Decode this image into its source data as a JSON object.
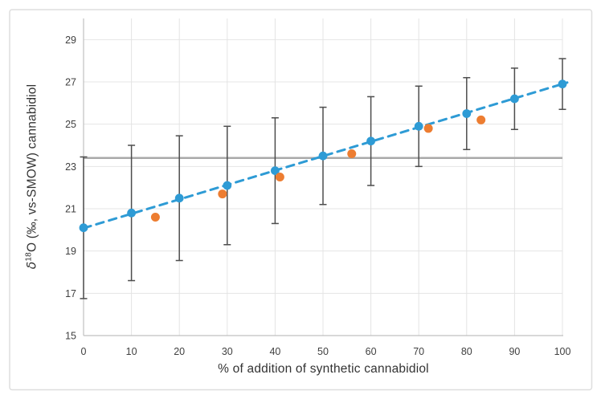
{
  "figure": {
    "background": "#FFFFFF",
    "border_color": "#DEDEDE"
  },
  "chart_data": {
    "type": "scatter",
    "title": "",
    "xlabel": "% of addition of synthetic cannabidiol",
    "ylabel": "δ18O (‰, vs-SMOW) cannabidiol",
    "ylabel_parts": {
      "delta": "δ",
      "sup": "18",
      "rest": "O (‰, vs-SMOW) cannabidiol"
    },
    "xlim": [
      0,
      100
    ],
    "ylim": [
      15,
      30
    ],
    "x_ticks": [
      0,
      10,
      20,
      30,
      40,
      50,
      60,
      70,
      80,
      90,
      100
    ],
    "y_ticks": [
      15,
      17,
      19,
      21,
      23,
      25,
      27,
      29
    ],
    "grid": true,
    "legend": "none",
    "colors": {
      "blue_series": "#2E9BD5",
      "orange_series": "#ED7D31",
      "error_bar": "#4D4D4D",
      "reference_line": "#A9A9A9",
      "gridline": "#E4E4E4",
      "axis_line": "#C0C0C0",
      "tick_text": "#404040",
      "title_text": "#333333"
    },
    "reference_line": {
      "y": 23.4
    },
    "trend_line": {
      "style": "dashed",
      "x_start": 0,
      "y_start": 20.08,
      "x_end": 101,
      "y_end": 26.97
    },
    "series": [
      {
        "id": "blue-mixture-series",
        "marker": "circle",
        "color_key": "blue_series",
        "has_error_bars": true,
        "points": [
          {
            "x": 0,
            "y": 20.1,
            "y_err": 3.35
          },
          {
            "x": 10,
            "y": 20.8,
            "y_err": 3.2
          },
          {
            "x": 20,
            "y": 21.5,
            "y_err": 2.95
          },
          {
            "x": 30,
            "y": 22.1,
            "y_err": 2.8
          },
          {
            "x": 40,
            "y": 22.8,
            "y_err": 2.5
          },
          {
            "x": 50,
            "y": 23.5,
            "y_err": 2.3
          },
          {
            "x": 60,
            "y": 24.2,
            "y_err": 2.1
          },
          {
            "x": 70,
            "y": 24.9,
            "y_err": 1.9
          },
          {
            "x": 80,
            "y": 25.5,
            "y_err": 1.7
          },
          {
            "x": 90,
            "y": 26.2,
            "y_err": 1.45
          },
          {
            "x": 100,
            "y": 26.9,
            "y_err": 1.2
          }
        ]
      },
      {
        "id": "orange-measured-series",
        "marker": "circle",
        "color_key": "orange_series",
        "has_error_bars": false,
        "points": [
          {
            "x": 15,
            "y": 20.6
          },
          {
            "x": 29,
            "y": 21.7
          },
          {
            "x": 41,
            "y": 22.5
          },
          {
            "x": 56,
            "y": 23.6
          },
          {
            "x": 72,
            "y": 24.8
          },
          {
            "x": 83,
            "y": 25.2
          }
        ]
      }
    ]
  }
}
